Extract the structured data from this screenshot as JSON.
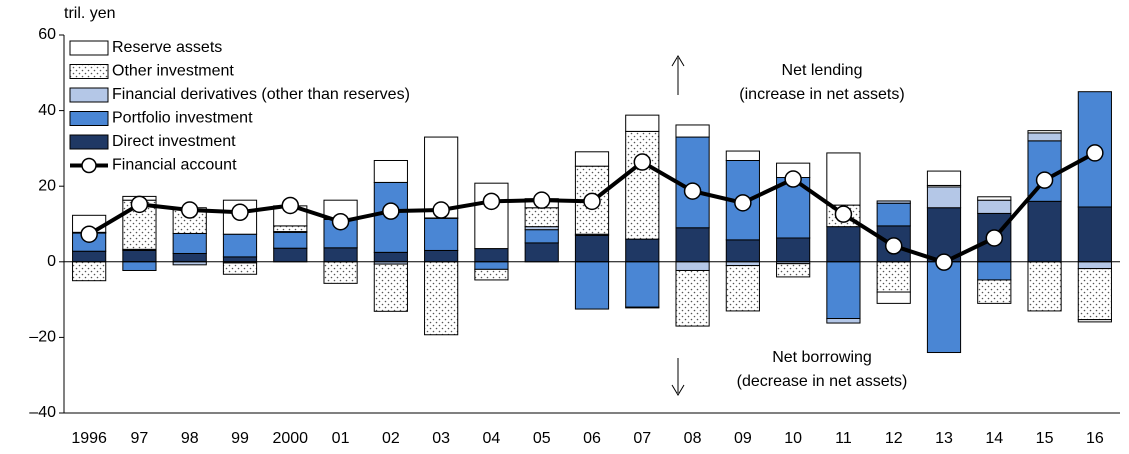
{
  "chart_data": {
    "type": "bar",
    "stacked": true,
    "y_axis_label": "tril. yen",
    "categories": [
      "1996",
      "97",
      "98",
      "99",
      "2000",
      "01",
      "02",
      "03",
      "04",
      "05",
      "06",
      "07",
      "08",
      "09",
      "10",
      "11",
      "12",
      "13",
      "14",
      "15",
      "16"
    ],
    "series": [
      {
        "name": "Direct investment",
        "type": "bar",
        "color": "#1f3864",
        "values": [
          2.8,
          3,
          2.2,
          1.3,
          3.6,
          3.7,
          2.5,
          3,
          3.5,
          5,
          7,
          6,
          9,
          5.8,
          6.3,
          9.3,
          9.5,
          14.3,
          12.8,
          16,
          14.5
        ]
      },
      {
        "name": "Portfolio investment",
        "type": "bar",
        "color": "#4a86d4",
        "values": [
          4.8,
          -2.3,
          5.3,
          6,
          4.2,
          7.5,
          18.5,
          8.5,
          -2,
          3.5,
          -12.5,
          -12,
          24,
          21,
          16,
          -15,
          6,
          -24,
          -4.8,
          16,
          30.5
        ]
      },
      {
        "name": "Financial derivatives (other than reserves)",
        "type": "bar",
        "color": "#b4c7e7",
        "values": [
          0.2,
          0.3,
          -0.8,
          -0.3,
          0.2,
          0.2,
          -0.6,
          0.1,
          0,
          0.8,
          0.3,
          -0.2,
          -2.3,
          -1,
          -0.5,
          -1.2,
          0.6,
          5.5,
          3.5,
          2.1,
          -1.8
        ]
      },
      {
        "name": "Other investment",
        "type": "bar",
        "color": "#ffffff",
        "pattern": "dots",
        "values": [
          -5,
          13,
          6.3,
          -3,
          1.5,
          -5.7,
          -12.5,
          -19.3,
          -2.8,
          5,
          18,
          28.5,
          -14.7,
          -12,
          -3.5,
          5.7,
          -8,
          0.4,
          -6.2,
          -13,
          -13.5
        ]
      },
      {
        "name": "Reserve assets",
        "type": "bar",
        "color": "#ffffff",
        "values": [
          4.5,
          1,
          0.5,
          9,
          5.3,
          4.9,
          5.8,
          21.4,
          17.3,
          2.4,
          3.8,
          4.3,
          3.2,
          2.5,
          3.8,
          13.8,
          -3,
          3.8,
          0.9,
          0.6,
          -0.6
        ]
      },
      {
        "name": "Financial account",
        "type": "line",
        "color": "#000000",
        "values": [
          7.3,
          15.2,
          13.7,
          13.1,
          14.9,
          10.6,
          13.4,
          13.7,
          16,
          16.3,
          16,
          26.4,
          18.7,
          15.6,
          21.9,
          12.6,
          4.2,
          -0.1,
          6.3,
          21.6,
          28.8
        ]
      }
    ],
    "ylim": [
      -40,
      60
    ],
    "yticks": [
      {
        "value": -40,
        "label": "–40"
      },
      {
        "value": -20,
        "label": "–20"
      },
      0,
      20,
      40,
      60
    ],
    "legend": "upper left",
    "annotations": [
      "Net lending",
      "(increase in net assets)",
      "Net borrowing",
      "(decrease in net assets)"
    ]
  }
}
